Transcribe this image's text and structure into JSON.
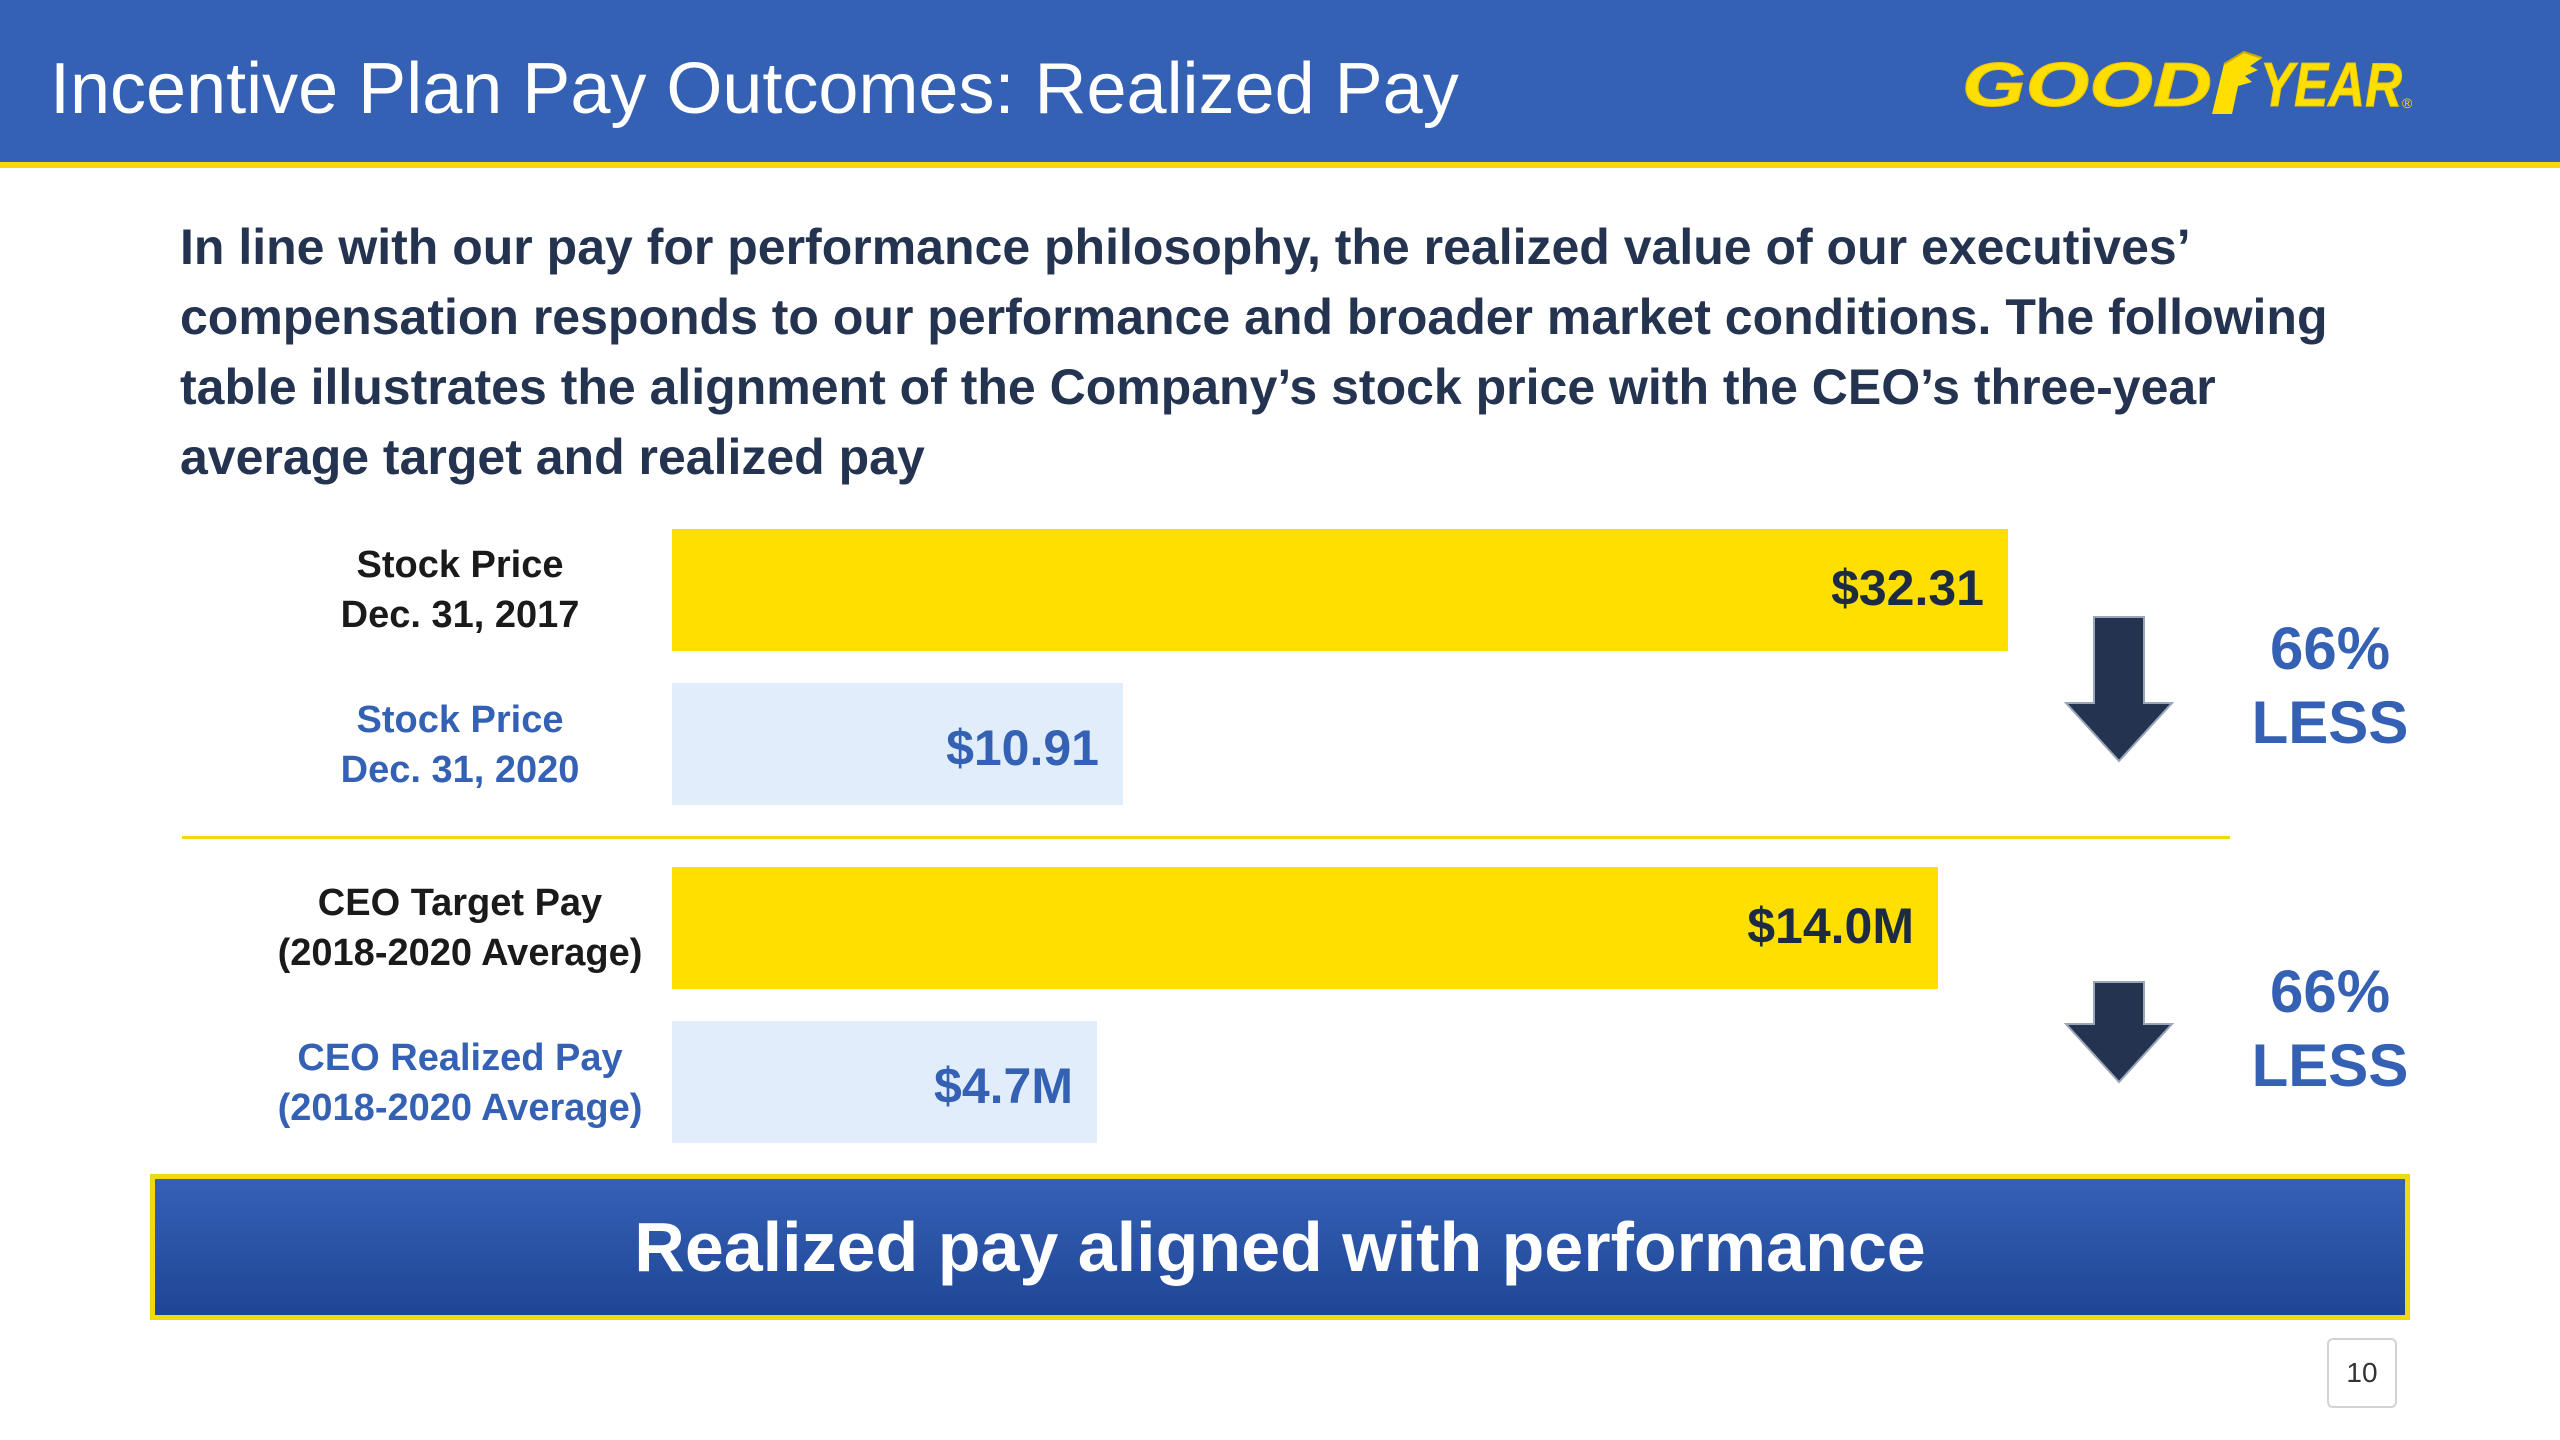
{
  "header": {
    "title": "Incentive Plan Pay Outcomes: Realized Pay",
    "logo_text": "GOODYEAR",
    "logo_color": "#ffdf00"
  },
  "intro_text": "In line with our pay for performance philosophy, the realized value of our executives’ compensation responds to our performance and broader market conditions. The following table illustrates the alignment of the Company’s stock price with the CEO’s three-year average target and realized pay",
  "chart_data": [
    {
      "type": "bar",
      "orientation": "horizontal",
      "categories": [
        [
          "Stock Price",
          "Dec. 31, 2017"
        ],
        [
          "Stock Price",
          "Dec. 31, 2020"
        ]
      ],
      "values": [
        32.31,
        10.91
      ],
      "value_labels": [
        "$32.31",
        "$10.91"
      ],
      "bar_colors": [
        "#ffdf00",
        "#e1edfa"
      ],
      "change_label": [
        "66%",
        "LESS"
      ]
    },
    {
      "type": "bar",
      "orientation": "horizontal",
      "categories": [
        [
          "CEO Target Pay",
          "(2018-2020 Average)"
        ],
        [
          "CEO Realized Pay",
          "(2018-2020 Average)"
        ]
      ],
      "values": [
        14.0,
        4.7
      ],
      "value_labels": [
        "$14.0M",
        "$4.7M"
      ],
      "bar_colors": [
        "#ffdf00",
        "#e1edfa"
      ],
      "change_label": [
        "66%",
        "LESS"
      ]
    }
  ],
  "banner_text": "Realized pay aligned with performance",
  "page_number": "10",
  "colors": {
    "header_blue": "#3561b5",
    "accent_yellow": "#f1d80f",
    "arrow_navy": "#243450"
  },
  "icons": {
    "down_arrow": "down-arrow-icon",
    "logo": "goodyear-wingfoot-logo"
  }
}
